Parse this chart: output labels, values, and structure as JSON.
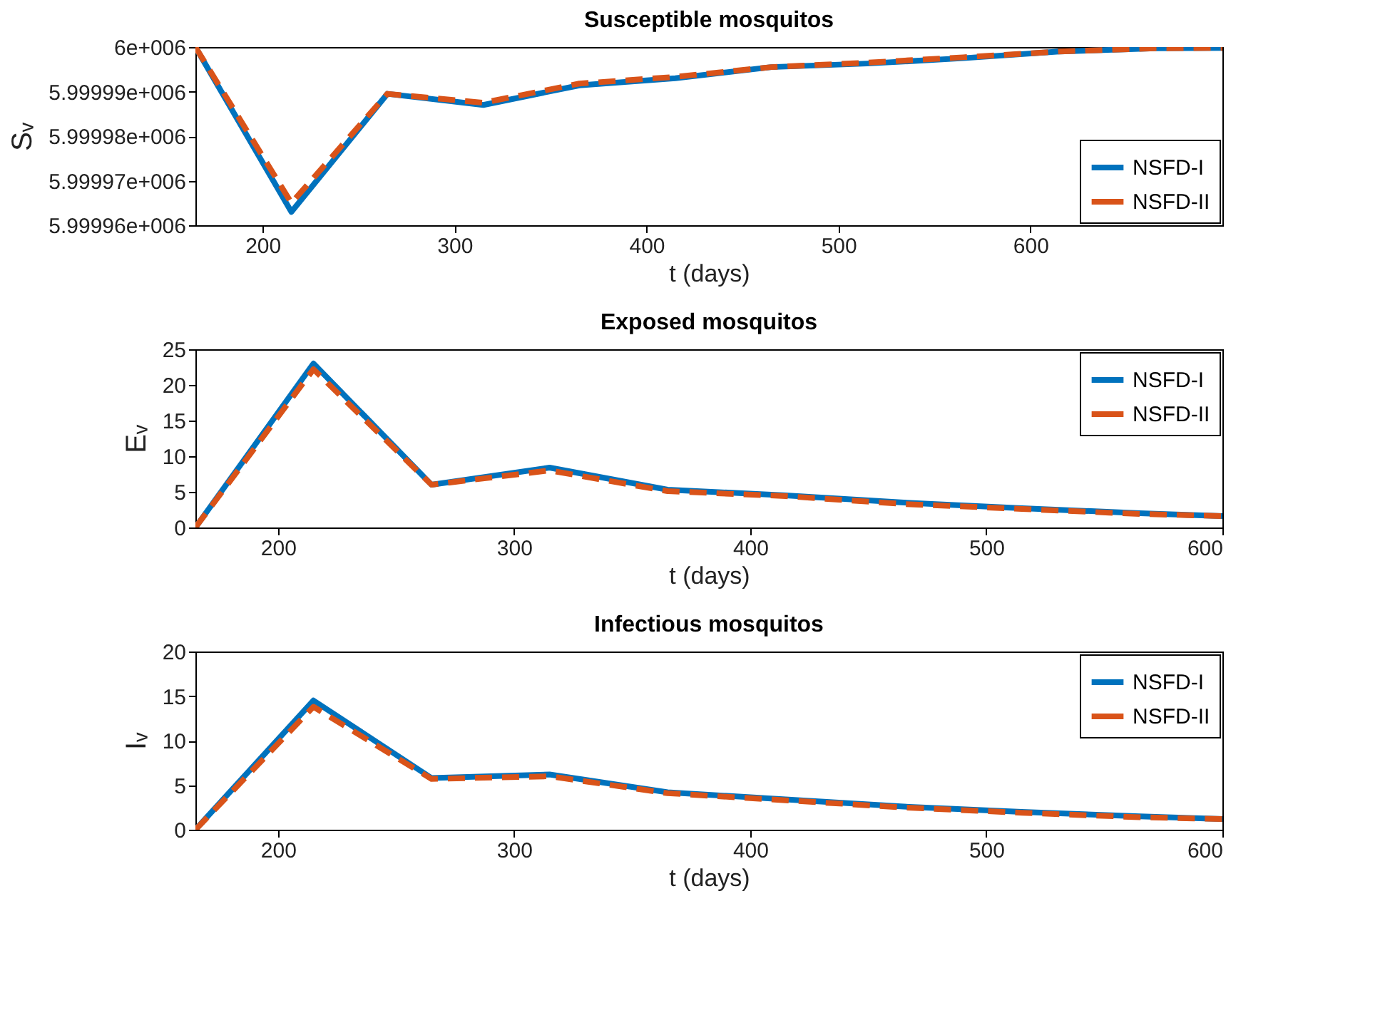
{
  "chart_data": [
    {
      "type": "line",
      "title": "Susceptible mosquitos",
      "xlabel": "t (days)",
      "ylabel": "Sᵥ",
      "xlim": [
        165,
        700
      ],
      "xticks": [
        200,
        300,
        400,
        500,
        600
      ],
      "ylim": [
        5999960,
        6000000
      ],
      "yticks": [
        {
          "value": 5999960,
          "label": "5.99996e+006"
        },
        {
          "value": 5999970,
          "label": "5.99997e+006"
        },
        {
          "value": 5999980,
          "label": "5.99998e+006"
        },
        {
          "value": 5999990,
          "label": "5.99999e+006"
        },
        {
          "value": 6000000,
          "label": "6e+006"
        }
      ],
      "grid": false,
      "legend": "bottom right",
      "x": [
        165,
        215,
        265,
        315,
        365,
        415,
        465,
        515,
        565,
        615,
        665,
        700
      ],
      "series": [
        {
          "name": "NSFD-I",
          "color": "#0072bd",
          "line_style": "solid",
          "values": [
            6000000,
            5999963,
            5999989.5,
            5999987,
            5999991.4,
            5999993,
            5999995.5,
            5999996.3,
            5999997.5,
            5999999,
            5999999.7,
            5999999.8
          ]
        },
        {
          "name": "NSFD-II",
          "color": "#d95319",
          "line_style": "dashed",
          "values": [
            6000000,
            5999965,
            5999989.5,
            5999987.5,
            5999991.8,
            5999993.3,
            5999995.5,
            5999996.5,
            5999997.7,
            5999999,
            5999999.7,
            5999999.8
          ]
        }
      ]
    },
    {
      "type": "line",
      "title": "Exposed mosquitos",
      "xlabel": "t (days)",
      "ylabel": "Eᵥ",
      "xlim": [
        165,
        600
      ],
      "xticks": [
        200,
        300,
        400,
        500,
        600
      ],
      "ylim": [
        0,
        25
      ],
      "yticks": [
        0,
        5,
        10,
        15,
        20,
        25
      ],
      "grid": false,
      "legend": "top right",
      "x": [
        165,
        215,
        265,
        315,
        365,
        415,
        465,
        515,
        565,
        600
      ],
      "series": [
        {
          "name": "NSFD-I",
          "color": "#0072bd",
          "line_style": "solid",
          "values": [
            0,
            23,
            6,
            8.4,
            5.3,
            4.5,
            3.5,
            2.7,
            2.0,
            1.6
          ]
        },
        {
          "name": "NSFD-II",
          "color": "#d95319",
          "line_style": "dashed",
          "values": [
            0,
            22.2,
            6,
            8,
            5.1,
            4.4,
            3.3,
            2.6,
            1.9,
            1.6
          ]
        }
      ]
    },
    {
      "type": "line",
      "title": "Infectious mosquitos",
      "xlabel": "t (days)",
      "ylabel": "Iᵥ",
      "xlim": [
        165,
        600
      ],
      "xticks": [
        200,
        300,
        400,
        500,
        600
      ],
      "ylim": [
        0,
        20
      ],
      "yticks": [
        0,
        5,
        10,
        15,
        20
      ],
      "grid": false,
      "legend": "top right",
      "x": [
        165,
        215,
        265,
        315,
        365,
        415,
        465,
        515,
        565,
        600
      ],
      "series": [
        {
          "name": "NSFD-I",
          "color": "#0072bd",
          "line_style": "solid",
          "values": [
            0,
            14.5,
            5.8,
            6.2,
            4.2,
            3.4,
            2.6,
            2.0,
            1.5,
            1.2
          ]
        },
        {
          "name": "NSFD-II",
          "color": "#d95319",
          "line_style": "dashed",
          "values": [
            0,
            13.8,
            5.7,
            6.0,
            4.1,
            3.3,
            2.5,
            1.9,
            1.4,
            1.2
          ]
        }
      ]
    }
  ]
}
